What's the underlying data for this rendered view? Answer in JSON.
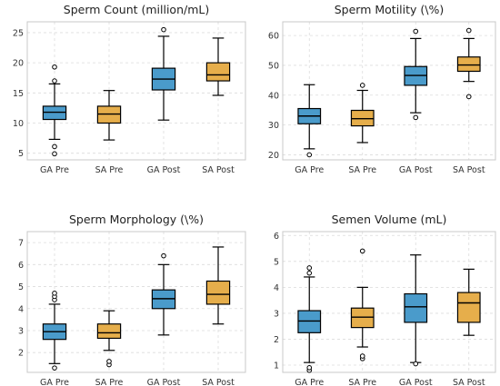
{
  "colors": {
    "ga": "#4a9bcb",
    "sa": "#e6ae4b",
    "frame": "#c8c8c8",
    "grid": "#dcdcdc",
    "whisker": "#000000"
  },
  "chart_data": [
    {
      "type": "box",
      "title": "Sperm Count (million/mL)",
      "categories": [
        "GA Pre",
        "SA Pre",
        "GA Post",
        "SA Post"
      ],
      "yticks": [
        5,
        10,
        15,
        20,
        25
      ],
      "yticklabels": [
        "5",
        "10",
        "15",
        "20",
        "25"
      ],
      "ylim": [
        3.9,
        26.8
      ],
      "grid": true,
      "boxes": [
        {
          "group": "GA",
          "min": 7.3,
          "q1": 10.6,
          "median": 11.8,
          "q3": 12.8,
          "max": 16.5,
          "outliers": [
            4.9,
            6.1,
            17.0,
            19.3
          ]
        },
        {
          "group": "SA",
          "min": 7.2,
          "q1": 10.0,
          "median": 11.5,
          "q3": 12.8,
          "max": 15.4,
          "outliers": []
        },
        {
          "group": "GA",
          "min": 10.5,
          "q1": 15.5,
          "median": 17.3,
          "q3": 19.1,
          "max": 24.4,
          "outliers": [
            25.5
          ]
        },
        {
          "group": "SA",
          "min": 14.6,
          "q1": 17.0,
          "median": 18.0,
          "q3": 20.0,
          "max": 24.1,
          "outliers": []
        }
      ]
    },
    {
      "type": "box",
      "title": "Sperm Motility (\\%)",
      "categories": [
        "GA Pre",
        "SA Pre",
        "GA Post",
        "SA Post"
      ],
      "yticks": [
        20,
        30,
        40,
        50,
        60
      ],
      "yticklabels": [
        "20",
        "30",
        "40",
        "50",
        "60"
      ],
      "ylim": [
        18.3,
        64.6
      ],
      "grid": true,
      "boxes": [
        {
          "group": "GA",
          "min": 22.0,
          "q1": 30.4,
          "median": 33.0,
          "q3": 35.5,
          "max": 43.5,
          "outliers": [
            20.0
          ]
        },
        {
          "group": "SA",
          "min": 24.1,
          "q1": 29.7,
          "median": 32.1,
          "q3": 34.9,
          "max": 41.6,
          "outliers": [
            43.3
          ]
        },
        {
          "group": "GA",
          "min": 34.1,
          "q1": 43.3,
          "median": 46.6,
          "q3": 49.6,
          "max": 59.0,
          "outliers": [
            32.5,
            61.4
          ]
        },
        {
          "group": "SA",
          "min": 44.6,
          "q1": 48.0,
          "median": 50.1,
          "q3": 52.8,
          "max": 59.0,
          "outliers": [
            39.5,
            61.7
          ]
        }
      ]
    },
    {
      "type": "box",
      "title": "Sperm Morphology (\\%)",
      "categories": [
        "GA Pre",
        "SA Pre",
        "GA Post",
        "SA Post"
      ],
      "yticks": [
        2,
        3,
        4,
        5,
        6,
        7
      ],
      "yticklabels": [
        "2",
        "3",
        "4",
        "5",
        "6",
        "7"
      ],
      "ylim": [
        1.1,
        7.5
      ],
      "grid": true,
      "boxes": [
        {
          "group": "GA",
          "min": 1.5,
          "q1": 2.6,
          "median": 2.95,
          "q3": 3.3,
          "max": 4.2,
          "outliers": [
            1.3,
            4.4,
            4.55,
            4.7
          ]
        },
        {
          "group": "SA",
          "min": 2.1,
          "q1": 2.65,
          "median": 2.9,
          "q3": 3.3,
          "max": 3.9,
          "outliers": [
            1.45,
            1.6
          ]
        },
        {
          "group": "GA",
          "min": 2.8,
          "q1": 4.0,
          "median": 4.45,
          "q3": 4.85,
          "max": 6.0,
          "outliers": [
            6.4
          ]
        },
        {
          "group": "SA",
          "min": 3.3,
          "q1": 4.2,
          "median": 4.65,
          "q3": 5.25,
          "max": 6.8,
          "outliers": []
        }
      ]
    },
    {
      "type": "box",
      "title": "Semen Volume (mL)",
      "categories": [
        "GA Pre",
        "SA Pre",
        "GA Post",
        "SA Post"
      ],
      "yticks": [
        1,
        2,
        3,
        4,
        5,
        6
      ],
      "yticklabels": [
        "1",
        "2",
        "3",
        "4",
        "5",
        "6"
      ],
      "ylim": [
        0.72,
        6.15
      ],
      "grid": true,
      "boxes": [
        {
          "group": "GA",
          "min": 1.1,
          "q1": 2.25,
          "median": 2.7,
          "q3": 3.1,
          "max": 4.4,
          "outliers": [
            0.8,
            0.9,
            4.55,
            4.75
          ]
        },
        {
          "group": "SA",
          "min": 1.7,
          "q1": 2.45,
          "median": 2.85,
          "q3": 3.2,
          "max": 4.0,
          "outliers": [
            1.25,
            1.35,
            5.4
          ]
        },
        {
          "group": "GA",
          "min": 1.1,
          "q1": 2.65,
          "median": 3.25,
          "q3": 3.75,
          "max": 5.25,
          "outliers": [
            1.05
          ]
        },
        {
          "group": "SA",
          "min": 2.15,
          "q1": 2.65,
          "median": 3.4,
          "q3": 3.8,
          "max": 4.7,
          "outliers": []
        }
      ]
    }
  ]
}
